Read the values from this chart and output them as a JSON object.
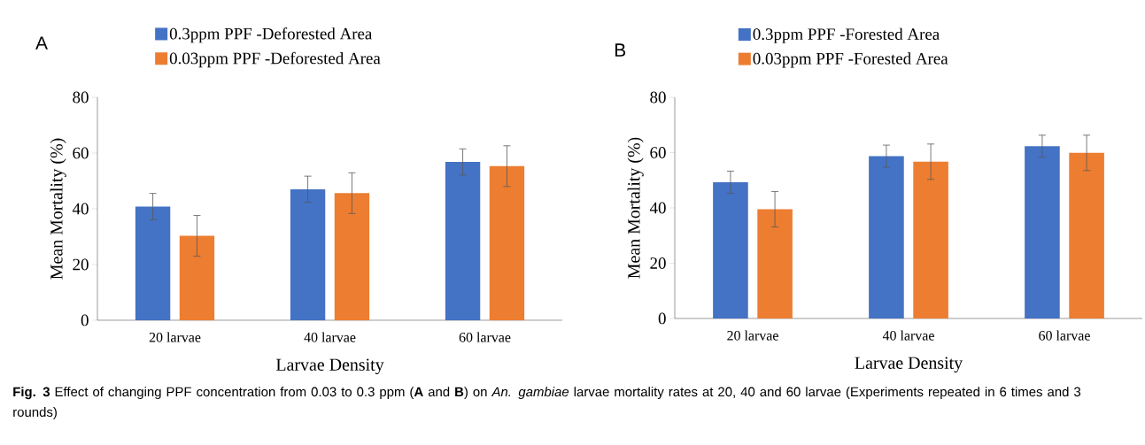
{
  "chart_data": [
    {
      "type": "bar",
      "title": "A",
      "categories": [
        "20 larvae",
        "40 larvae",
        "60 larvae"
      ],
      "xlabel": "Larvae Density",
      "ylabel": "Mean Mortality (%)",
      "ylim": [
        0,
        80
      ],
      "yticks": [
        0,
        20,
        40,
        60,
        80
      ],
      "legend": "top",
      "series": [
        {
          "name": "0.3ppm PPF -Deforested Area",
          "color": "#4472c4",
          "values": [
            40.8,
            47.0,
            56.8
          ],
          "errors": [
            4.7,
            4.7,
            4.7
          ]
        },
        {
          "name": "0.03ppm PPF -Deforested Area",
          "color": "#ed7d31",
          "values": [
            30.3,
            45.6,
            55.3
          ],
          "errors": [
            7.3,
            7.3,
            7.3
          ]
        }
      ],
      "annotations": [
        "**Fig. 3** Effect of changing PPF concentration from 0.03 to 0.3 ppm (**A** and **B**) on *An. gambiae* larvae mortality rates at 20, 40 and 60 larvae (Experiments repeated in 6 times and 3 rounds)"
      ]
    },
    {
      "type": "bar",
      "title": "B",
      "categories": [
        "20 larvae",
        "40 larvae",
        "60 larvae"
      ],
      "xlabel": "Larvae Density",
      "ylabel": "Mean Mortality (%)",
      "ylim": [
        0,
        80
      ],
      "yticks": [
        0,
        20,
        40,
        60,
        80
      ],
      "legend": "top",
      "series": [
        {
          "name": "0.3ppm PPF -Forested Area",
          "color": "#4472c4",
          "values": [
            49.3,
            58.7,
            62.3
          ],
          "errors": [
            4.0,
            4.0,
            4.0
          ]
        },
        {
          "name": "0.03ppm PPF -Forested Area",
          "color": "#ed7d31",
          "values": [
            39.5,
            56.7,
            59.9
          ],
          "errors": [
            6.4,
            6.4,
            6.4
          ]
        }
      ]
    }
  ]
}
